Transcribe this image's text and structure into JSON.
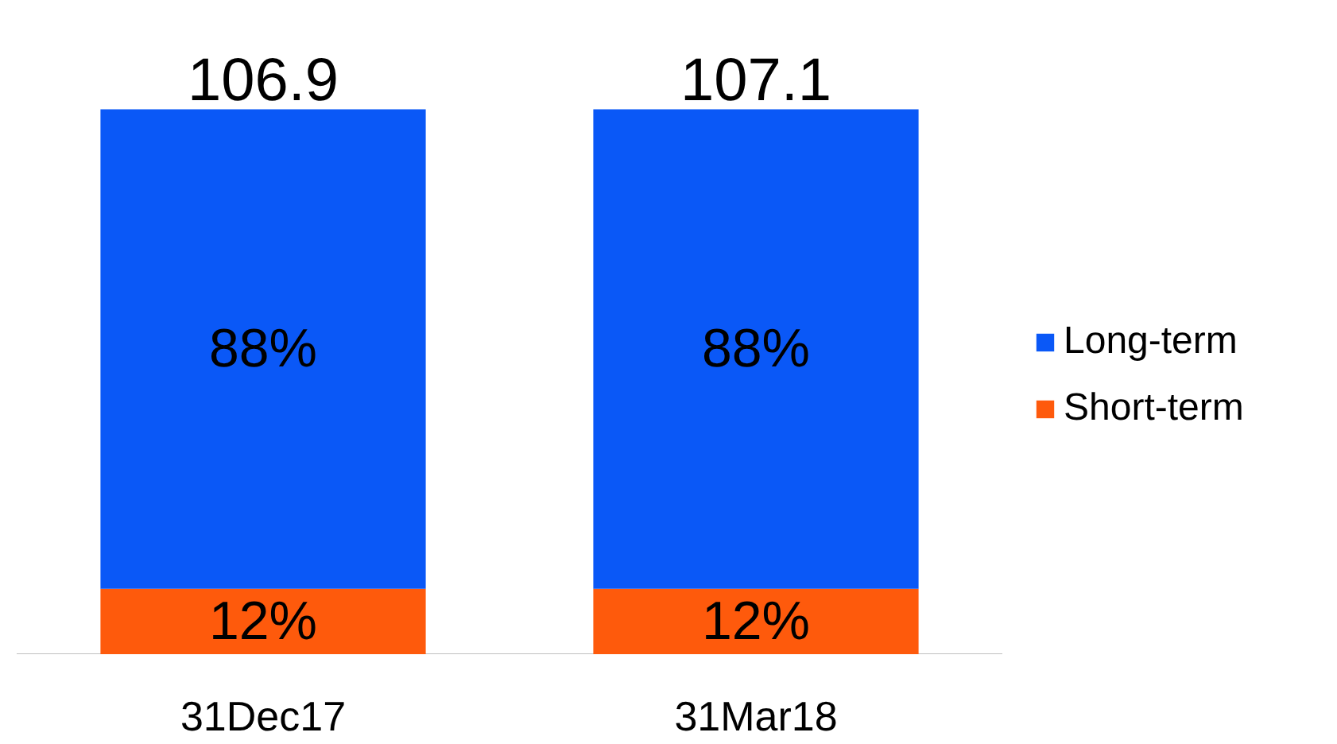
{
  "chart_data": {
    "type": "bar",
    "stacked": true,
    "categories": [
      "31Dec17",
      "31Mar18"
    ],
    "series": [
      {
        "name": "Short-term",
        "color": "#fe5a0c",
        "values": [
          12,
          12
        ],
        "value_labels": [
          "12%",
          "12%"
        ]
      },
      {
        "name": "Long-term",
        "color": "#0a58f7",
        "values": [
          88,
          88
        ],
        "value_labels": [
          "88%",
          "88%"
        ]
      }
    ],
    "annotations": [
      {
        "text": "106.9",
        "x": "31Dec17",
        "y": 100
      },
      {
        "text": "107.1",
        "x": "31Mar18",
        "y": 100
      }
    ],
    "legend": "right",
    "grid": false
  }
}
